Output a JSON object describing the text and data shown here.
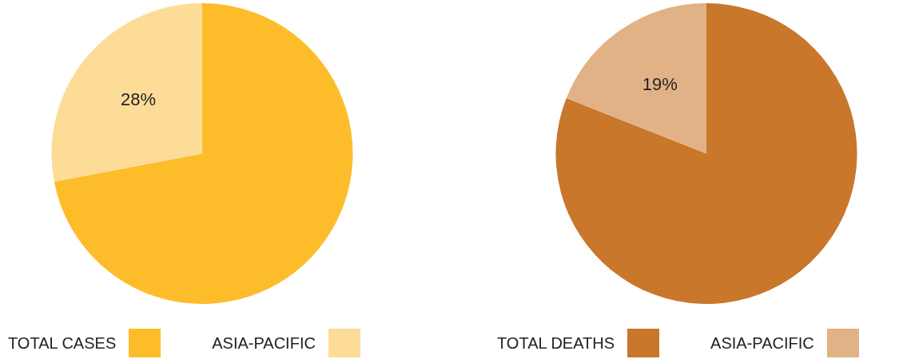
{
  "chart_data": [
    {
      "type": "pie",
      "categories": [
        "TOTAL CASES",
        "ASIA-PACIFIC"
      ],
      "values": [
        72,
        28
      ],
      "colors": [
        "#fdbd2b",
        "#fddc98"
      ],
      "value_labels": [
        null,
        "28%"
      ],
      "legend": "bottom"
    },
    {
      "type": "pie",
      "categories": [
        "TOTAL DEATHS",
        "ASIA-PACIFIC"
      ],
      "values": [
        81,
        19
      ],
      "colors": [
        "#c8772b",
        "#e1b285"
      ],
      "value_labels": [
        null,
        "19%"
      ],
      "legend": "bottom"
    }
  ]
}
